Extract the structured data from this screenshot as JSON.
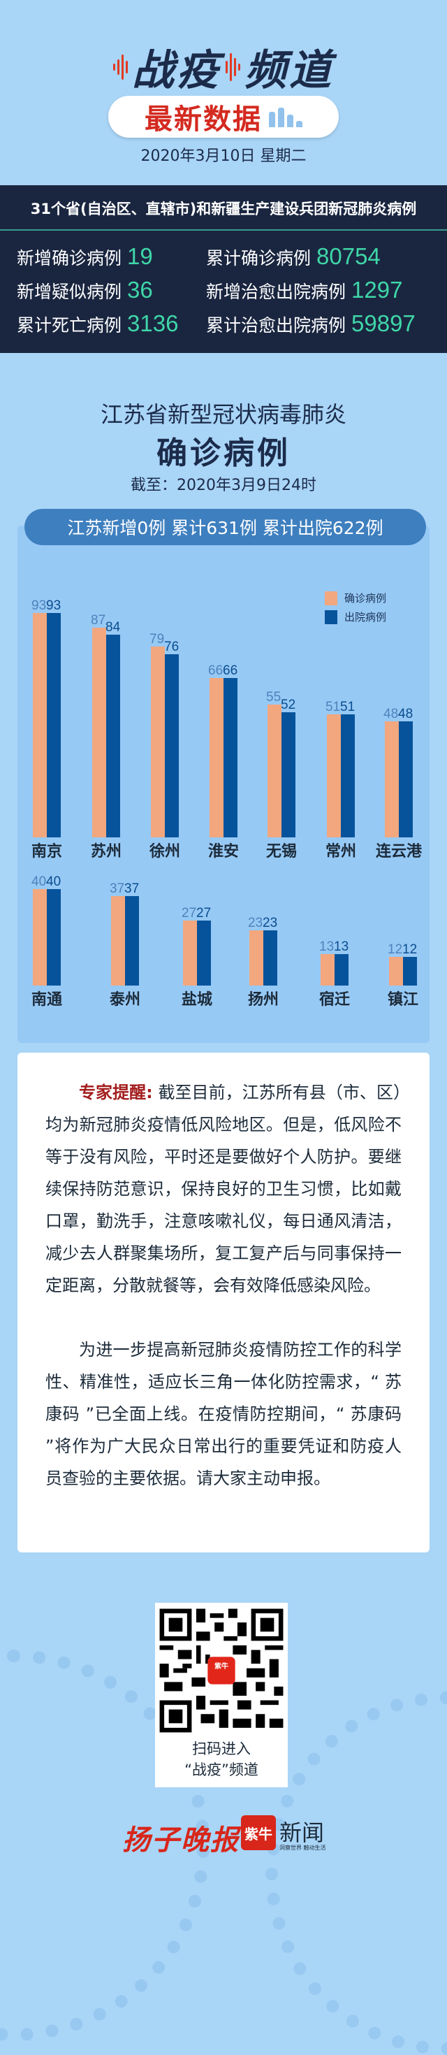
{
  "header": {
    "brand_part1": "战疫",
    "brand_part2": "频道",
    "badge": "最新数据",
    "date": "2020年3月10日  星期二"
  },
  "national": {
    "title": "31个省(自治区、直辖市)和新疆生产建设兵团新冠肺炎病例",
    "stats": [
      {
        "label": "新增确诊病例",
        "value": "19"
      },
      {
        "label": "累计确诊病例",
        "value": "80754"
      },
      {
        "label": "新增疑似病例",
        "value": "36"
      },
      {
        "label": "新增治愈出院病例",
        "value": "1297"
      },
      {
        "label": "累计死亡病例",
        "value": "3136"
      },
      {
        "label": "累计治愈出院病例",
        "value": "59897"
      }
    ],
    "accent_color": "#3fd6a8",
    "bg_color": "#1a2640"
  },
  "jiangsu": {
    "title_line1": "江苏省新型冠状病毒肺炎",
    "title_line2": "确诊病例",
    "as_of": "截至：2020年3月9日24时",
    "summary": "江苏新增0例  累计631例  累计出院622例"
  },
  "chart_data": {
    "type": "bar",
    "title": "江苏省新型冠状病毒肺炎确诊病例",
    "subtitle": "截至：2020年3月9日24时",
    "xlabel": "",
    "ylabel": "",
    "legend": [
      "确诊病例",
      "出院病例"
    ],
    "legend_position": "right",
    "grid": false,
    "categories": [
      "南京",
      "苏州",
      "徐州",
      "淮安",
      "无锡",
      "常州",
      "连云港",
      "南通",
      "泰州",
      "盐城",
      "扬州",
      "宿迁",
      "镇江"
    ],
    "series": [
      {
        "name": "确诊病例",
        "color": "#f2a77e",
        "values": [
          93,
          87,
          79,
          66,
          55,
          51,
          48,
          40,
          37,
          27,
          23,
          13,
          12
        ]
      },
      {
        "name": "出院病例",
        "color": "#06539c",
        "values": [
          93,
          84,
          76,
          66,
          52,
          51,
          48,
          40,
          37,
          27,
          23,
          13,
          12
        ]
      }
    ]
  },
  "notice": {
    "highlight": "专家提醒",
    "para1": "截至目前，江苏所有县（市、区）均为新冠肺炎疫情低风险地区。但是，低风险不等于没有风险，平时还是要做好个人防护。要继续保持防范意识，保持良好的卫生习惯，比如戴口罩，勤洗手，注意咳嗽礼仪，每日通风清洁，减少去人群聚集场所，复工复产后与同事保持一定距离，分散就餐等，会有效降低感染风险。",
    "para2": "为进一步提高新冠肺炎疫情防控工作的科学性、精准性，适应长三角一体化防控需求，“ 苏康码 ”已全面上线。在疫情防控期间，“ 苏康码 ”将作为广大民众日常出行的重要凭证和防疫人员查验的主要依据。请大家主动申报。"
  },
  "qr": {
    "center_logo": "紫牛",
    "caption_line1": "扫码进入",
    "caption_line2": "“战疫”频道"
  },
  "footer": {
    "newspaper": "扬子晚报",
    "app_badge": "紫牛",
    "app_name": "新闻",
    "slogan": "洞察世界  触动生活"
  }
}
